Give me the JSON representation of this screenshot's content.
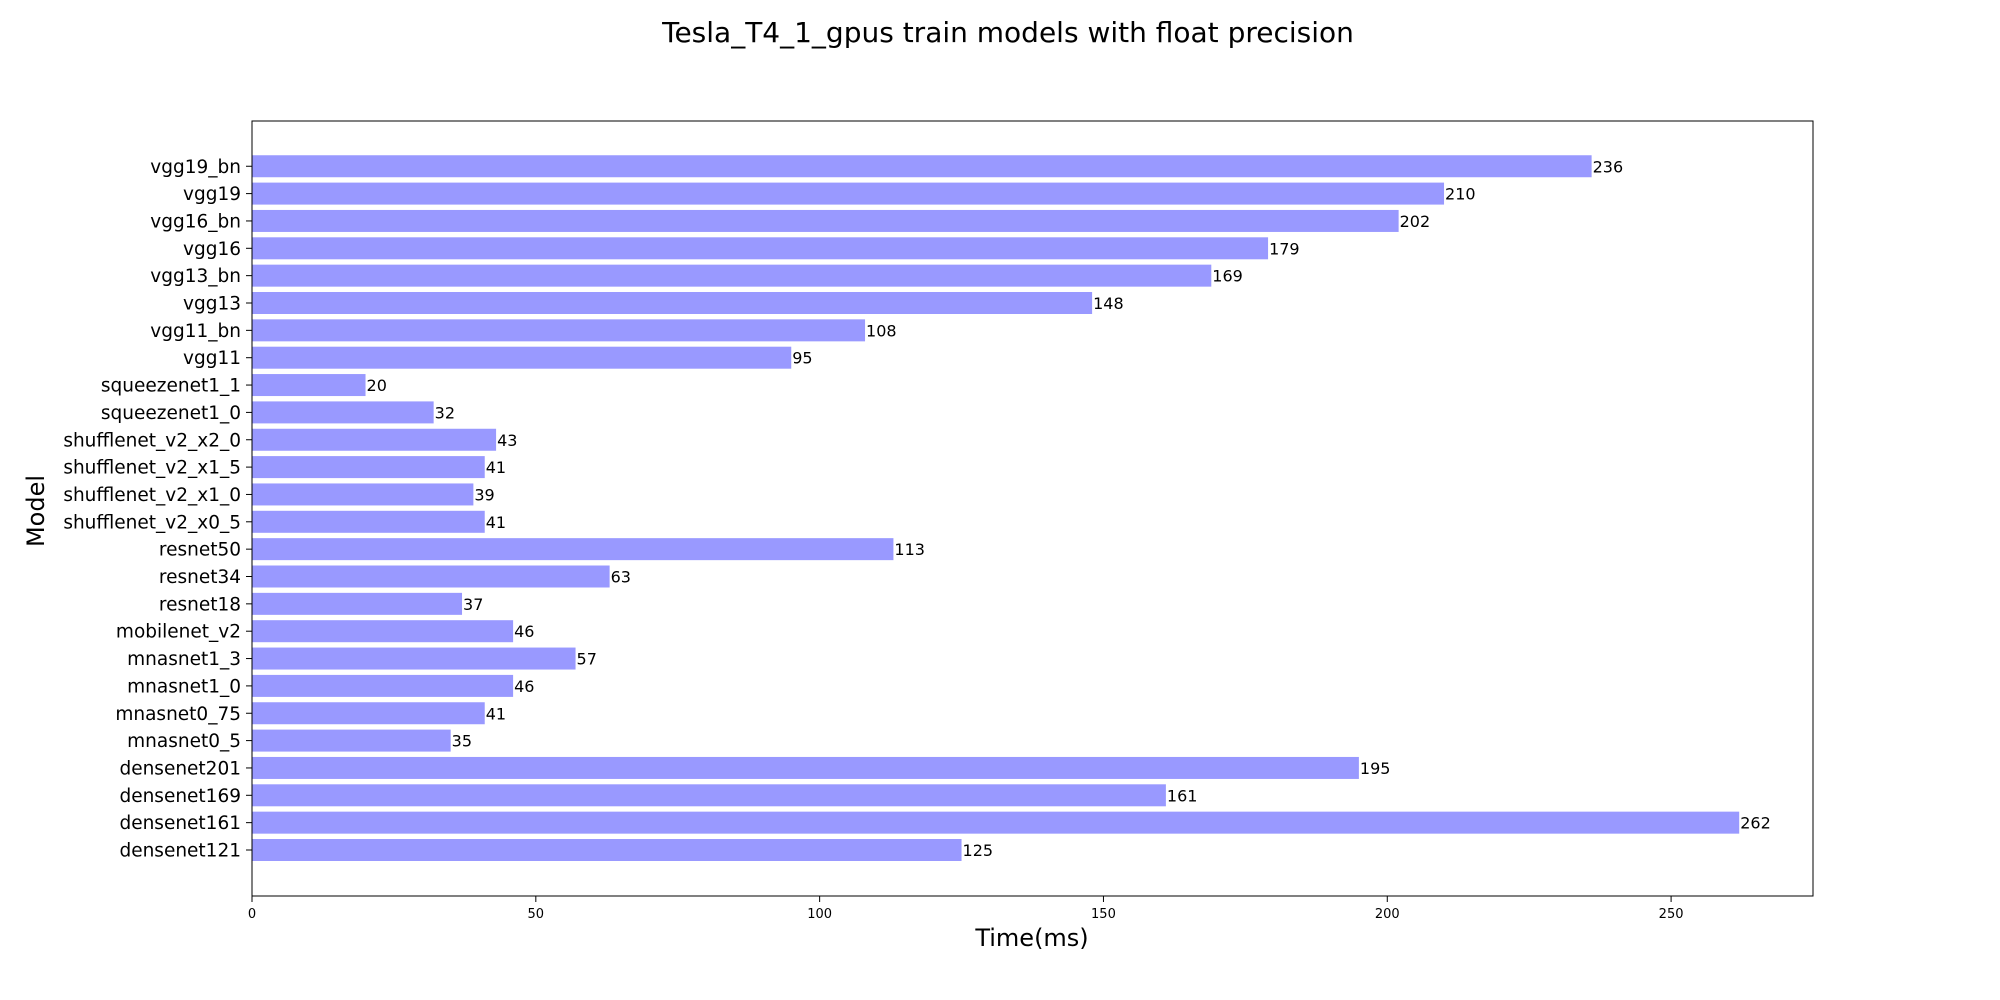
{
  "chart_data": {
    "type": "bar",
    "orientation": "horizontal",
    "title": "Tesla_T4_1_gpus train models with float precision",
    "xlabel": "Time(ms)",
    "ylabel": "Model",
    "xlim": [
      0,
      275
    ],
    "xticks": [
      0,
      50,
      100,
      150,
      200,
      250
    ],
    "bar_color": "#9999ff",
    "grid": false,
    "categories": [
      "densenet121",
      "densenet161",
      "densenet169",
      "densenet201",
      "mnasnet0_5",
      "mnasnet0_75",
      "mnasnet1_0",
      "mnasnet1_3",
      "mobilenet_v2",
      "resnet18",
      "resnet34",
      "resnet50",
      "shufflenet_v2_x0_5",
      "shufflenet_v2_x1_0",
      "shufflenet_v2_x1_5",
      "shufflenet_v2_x2_0",
      "squeezenet1_0",
      "squeezenet1_1",
      "vgg11",
      "vgg11_bn",
      "vgg13",
      "vgg13_bn",
      "vgg16",
      "vgg16_bn",
      "vgg19",
      "vgg19_bn"
    ],
    "values": [
      125,
      262,
      161,
      195,
      35,
      41,
      46,
      57,
      46,
      37,
      63,
      113,
      41,
      39,
      41,
      43,
      32,
      20,
      95,
      108,
      148,
      169,
      179,
      202,
      210,
      236
    ],
    "data_labels": [
      "125",
      "262",
      "161",
      "195",
      "35",
      "41",
      "46",
      "57",
      "46",
      "37",
      "63",
      "113",
      "41",
      "39",
      "41",
      "43",
      "32",
      "20",
      "95",
      "108",
      "148",
      "169",
      "179",
      "202",
      "210",
      "236"
    ]
  }
}
